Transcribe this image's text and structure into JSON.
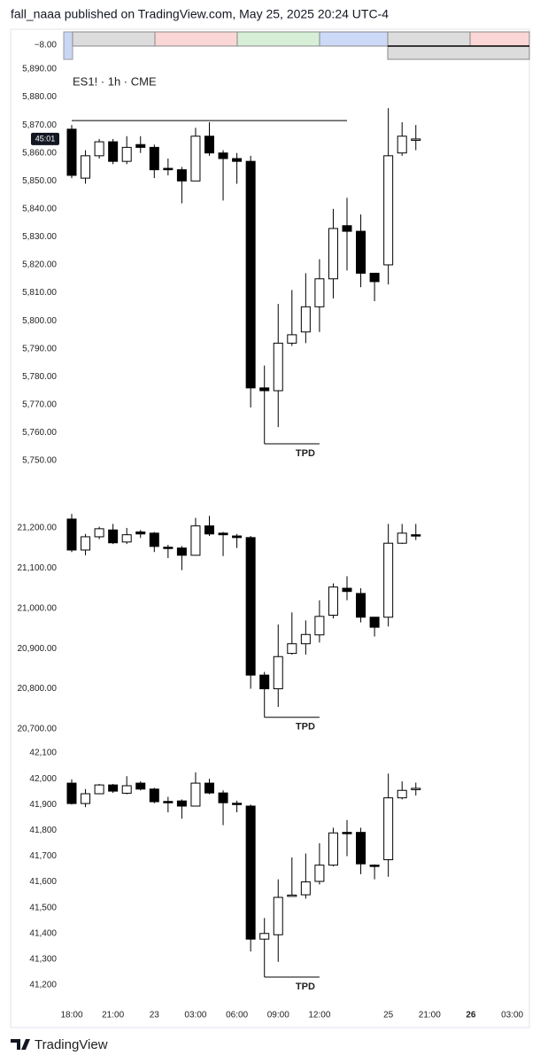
{
  "header": {
    "text": "fall_naaa published on TradingView.com, May 25, 2025 20:24 UTC-4"
  },
  "top_strip": {
    "label": "−8.00"
  },
  "footer": {
    "brand": "TradingView"
  },
  "time_axis": [
    {
      "value": 0,
      "label": "18:00"
    },
    {
      "value": 3,
      "label": "21:00"
    },
    {
      "value": 6,
      "label": "23"
    },
    {
      "value": 9,
      "label": "03:00"
    },
    {
      "value": 12,
      "label": "06:00"
    },
    {
      "value": 15,
      "label": "09:00"
    },
    {
      "value": 18,
      "label": "12:00"
    },
    {
      "value": 23,
      "label": "25"
    },
    {
      "value": 26,
      "label": "21:00"
    },
    {
      "value": 29,
      "label": "26"
    },
    {
      "value": 32,
      "label": "03:00"
    }
  ],
  "chart_data": [
    {
      "type": "candlestick",
      "symbol_label": "ES1! · 1h · CME",
      "countdown": "45:01",
      "open": [
        5868.5,
        5851,
        5859,
        5864,
        5857,
        5863,
        5862,
        5854.5,
        5854,
        5850,
        5866,
        5860,
        5858,
        5857,
        5776,
        5775,
        5792,
        5796,
        5805,
        5815,
        5834,
        5832,
        5817,
        5820,
        5860,
        5865
      ],
      "high": [
        5870,
        5861,
        5865,
        5865,
        5866,
        5866,
        5863,
        5858,
        5855,
        5869,
        5871,
        5861,
        5860,
        5859,
        5784,
        5806,
        5811,
        5817,
        5822,
        5840,
        5844,
        5838,
        5817,
        5876,
        5871,
        5870
      ],
      "low": [
        5851,
        5849,
        5858,
        5856,
        5856,
        5860,
        5851,
        5852,
        5842,
        5850,
        5859,
        5843,
        5849,
        5769,
        5763,
        5762,
        5791,
        5792,
        5796,
        5808,
        5818,
        5812,
        5807,
        5813,
        5859,
        5861
      ],
      "close": [
        5852,
        5859,
        5864,
        5857,
        5862,
        5862,
        5854,
        5854,
        5850,
        5866,
        5860,
        5858,
        5857,
        5776,
        5775,
        5792,
        5795,
        5805,
        5815,
        5833,
        5832,
        5817,
        5814,
        5859,
        5866,
        5865
      ],
      "ylim": [
        5746,
        5893
      ],
      "yticks": [
        {
          "value": 5890,
          "label": "5,890.00"
        },
        {
          "value": 5880,
          "label": "5,880.00"
        },
        {
          "value": 5870,
          "label": "5,870.00"
        },
        {
          "value": 5860,
          "label": "5,860.00"
        },
        {
          "value": 5850,
          "label": "5,850.00"
        },
        {
          "value": 5840,
          "label": "5,840.00"
        },
        {
          "value": 5830,
          "label": "5,830.00"
        },
        {
          "value": 5820,
          "label": "5,820.00"
        },
        {
          "value": 5810,
          "label": "5,810.00"
        },
        {
          "value": 5800,
          "label": "5,800.00"
        },
        {
          "value": 5790,
          "label": "5,790.00"
        },
        {
          "value": 5780,
          "label": "5,780.00"
        },
        {
          "value": 5770,
          "label": "5,770.00"
        },
        {
          "value": 5760,
          "label": "5,760.00"
        },
        {
          "value": 5750,
          "label": "5,750.00"
        }
      ],
      "lines": [
        {
          "price": 5871.6,
          "from": 0,
          "to": 20
        }
      ],
      "annotations": [
        {
          "text": "TPD",
          "price": 5756,
          "from": 14,
          "to": 18
        }
      ]
    },
    {
      "type": "candlestick",
      "open": [
        21222,
        21145,
        21178,
        21195,
        21165,
        21190,
        21187,
        21152,
        21150,
        21132,
        21205,
        21187,
        21180,
        21176,
        20834,
        20800,
        20888,
        20912,
        20934,
        20983,
        21050,
        21037,
        20978,
        20978,
        21162,
        21183
      ],
      "high": [
        21235,
        21185,
        21203,
        21210,
        21200,
        21195,
        21190,
        21158,
        21155,
        21225,
        21230,
        21190,
        21185,
        21180,
        20842,
        20960,
        20990,
        20970,
        21020,
        21062,
        21080,
        21050,
        20978,
        21210,
        21210,
        21210
      ],
      "low": [
        21140,
        21132,
        21172,
        21160,
        21160,
        21175,
        21140,
        21125,
        21095,
        21132,
        21180,
        21130,
        21150,
        20800,
        20800,
        20755,
        20885,
        20885,
        20915,
        20975,
        21020,
        20965,
        20930,
        20955,
        21160,
        21170
      ],
      "close": [
        21145,
        21178,
        21198,
        21163,
        21183,
        21185,
        21154,
        21150,
        21132,
        21205,
        21185,
        21183,
        21176,
        20834,
        20800,
        20880,
        20912,
        20935,
        20980,
        21053,
        21042,
        20978,
        20953,
        21162,
        21187,
        21180
      ],
      "ylim": [
        20690,
        21240
      ],
      "yticks": [
        {
          "value": 21200,
          "label": "21,200.00"
        },
        {
          "value": 21100,
          "label": "21,100.00"
        },
        {
          "value": 21000,
          "label": "21,000.00"
        },
        {
          "value": 20900,
          "label": "20,900.00"
        },
        {
          "value": 20800,
          "label": "20,800.00"
        },
        {
          "value": 20700,
          "label": "20,700.00"
        }
      ],
      "lines": [],
      "annotations": [
        {
          "text": "TPD",
          "price": 20729,
          "from": 14,
          "to": 18
        }
      ]
    },
    {
      "type": "candlestick",
      "open": [
        41983,
        41904,
        41942,
        41976,
        41944,
        41983,
        41960,
        41912,
        41914,
        41894,
        41983,
        41945,
        41905,
        41894,
        41378,
        41395,
        41548,
        41550,
        41602,
        41665,
        41792,
        41792,
        41665,
        41686,
        41926,
        41962
      ],
      "high": [
        41998,
        41960,
        41980,
        41980,
        42010,
        41990,
        41965,
        41930,
        41920,
        42025,
        42000,
        41955,
        41915,
        41900,
        41460,
        41610,
        41695,
        41710,
        41750,
        41810,
        41840,
        41810,
        41668,
        42020,
        41990,
        41985
      ],
      "low": [
        41900,
        41890,
        41940,
        41945,
        41940,
        41955,
        41905,
        41870,
        41845,
        41894,
        41940,
        41820,
        41870,
        41330,
        41370,
        41290,
        41548,
        41535,
        41590,
        41660,
        41700,
        41630,
        41610,
        41620,
        41920,
        41935
      ],
      "close": [
        41904,
        41942,
        41976,
        41952,
        41973,
        41960,
        41911,
        41910,
        41894,
        41983,
        41945,
        41907,
        41900,
        41378,
        41400,
        41540,
        41549,
        41600,
        41665,
        41790,
        41790,
        41670,
        41662,
        41926,
        41955,
        41963
      ],
      "ylim": [
        41180,
        42130
      ],
      "yticks": [
        {
          "value": 42100,
          "label": "42,100"
        },
        {
          "value": 42000,
          "label": "42,000"
        },
        {
          "value": 41900,
          "label": "41,900"
        },
        {
          "value": 41800,
          "label": "41,800"
        },
        {
          "value": 41700,
          "label": "41,700"
        },
        {
          "value": 41600,
          "label": "41,600"
        },
        {
          "value": 41500,
          "label": "41,500"
        },
        {
          "value": 41400,
          "label": "41,400"
        },
        {
          "value": 41300,
          "label": "41,300"
        },
        {
          "value": 41200,
          "label": "41,200"
        }
      ],
      "lines": [],
      "annotations": [
        {
          "text": "TPD",
          "price": 41231,
          "from": 14,
          "to": 18
        }
      ]
    }
  ]
}
